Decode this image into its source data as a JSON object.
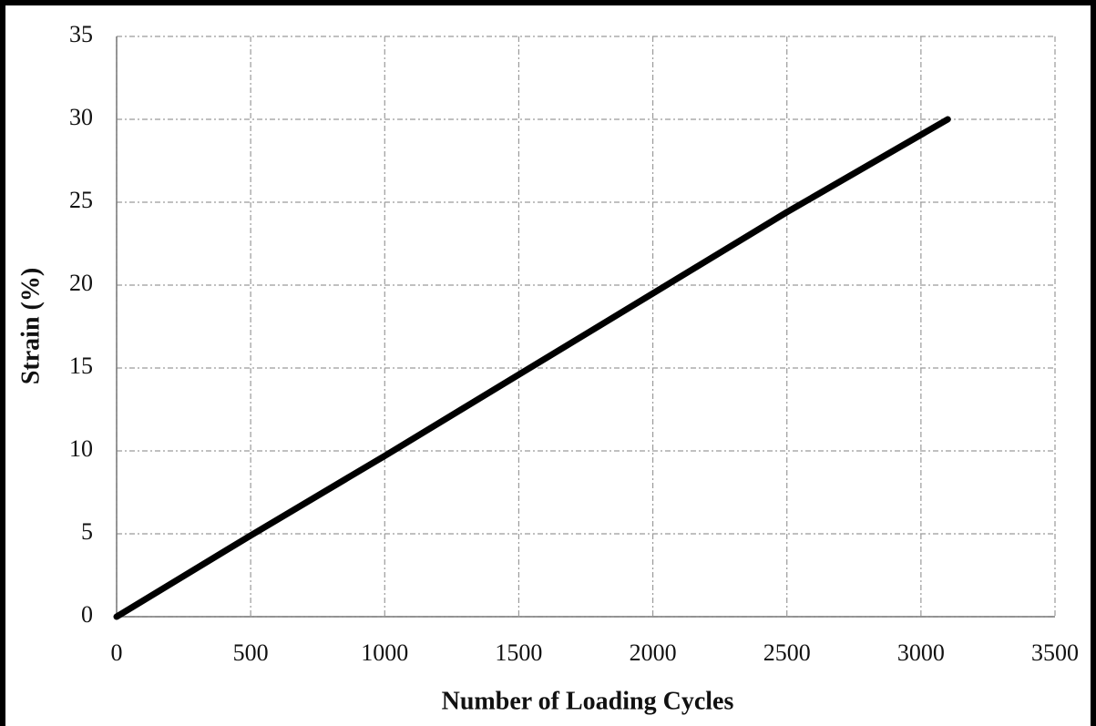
{
  "chart_data": {
    "type": "line",
    "x_label": "Number of Loading Cycles",
    "y_label": "Strain (%)",
    "x": [
      0,
      500,
      1000,
      1500,
      2000,
      2500,
      3100
    ],
    "series": [
      {
        "color": "#000000",
        "values": [
          0,
          4.9,
          9.7,
          14.6,
          19.5,
          24.4,
          30
        ]
      }
    ],
    "xlim": [
      0,
      3500
    ],
    "xticks": [
      0,
      500,
      1000,
      1500,
      2000,
      2500,
      3000,
      3500
    ],
    "ylim": [
      0,
      35
    ],
    "yticks": [
      0,
      5,
      10,
      15,
      20,
      25,
      30,
      35
    ],
    "grid": true
  }
}
